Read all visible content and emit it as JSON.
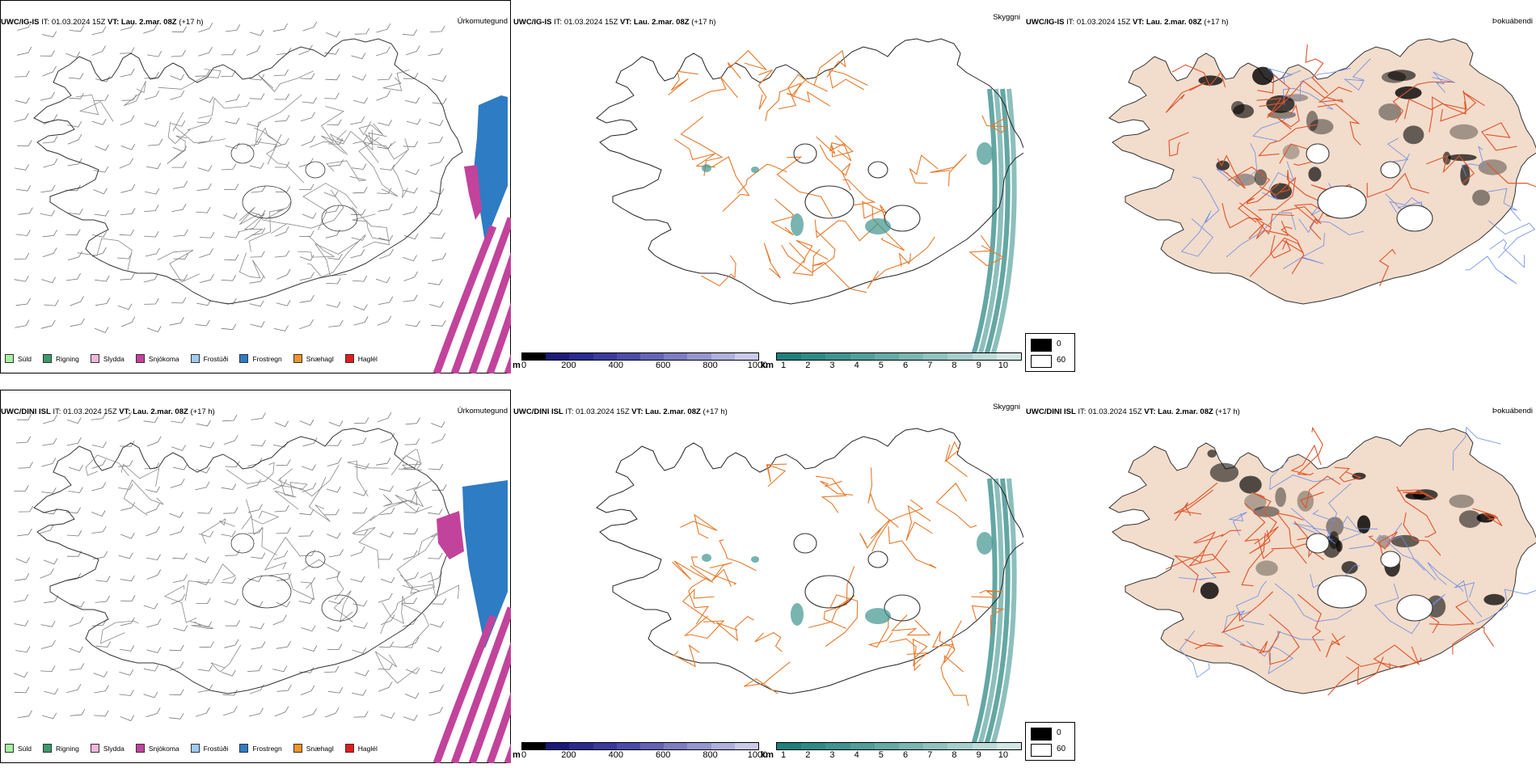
{
  "panels": [
    {
      "model": "UWC/IG-IS",
      "it_label": "IT:",
      "it_value": "01.03.2024 15Z",
      "vt_label": "VT:",
      "vt_value": "Lau. 2.mar. 08Z",
      "lead": "(+17 h)",
      "title": "Úrkomutegund"
    },
    {
      "model": "UWC/IG-IS",
      "it_label": "IT:",
      "it_value": "01.03.2024 15Z",
      "vt_label": "VT:",
      "vt_value": "Lau. 2.mar. 08Z",
      "lead": "(+17 h)",
      "title": "Skyggni"
    },
    {
      "model": "UWC/IG-IS",
      "it_label": "IT:",
      "it_value": "01.03.2024 15Z",
      "vt_label": "VT:",
      "vt_value": "Lau. 2.mar. 08Z",
      "lead": "(+17 h)",
      "title": "Þokuábendi"
    },
    {
      "model": "UWC/DINI ISL",
      "it_label": "IT:",
      "it_value": "01.03.2024 15Z",
      "vt_label": "VT:",
      "vt_value": "Lau. 2.mar. 08Z",
      "lead": "(+17 h)",
      "title": "Úrkomutegund"
    },
    {
      "model": "UWC/DINI ISL",
      "it_label": "IT:",
      "it_value": "01.03.2024 15Z",
      "vt_label": "VT:",
      "vt_value": "Lau. 2.mar. 08Z",
      "lead": "(+17 h)",
      "title": "Skyggni"
    },
    {
      "model": "UWC/DINI ISL",
      "it_label": "IT:",
      "it_value": "01.03.2024 15Z",
      "vt_label": "VT:",
      "vt_value": "Lau. 2.mar. 08Z",
      "lead": "(+17 h)",
      "title": "Þokuábendi"
    }
  ],
  "precip_legend": [
    {
      "label": "Súld",
      "color": "#a6f0a0"
    },
    {
      "label": "Rigning",
      "color": "#3d9a6b"
    },
    {
      "label": "Slydda",
      "color": "#f3b6dc"
    },
    {
      "label": "Snjókoma",
      "color": "#c2439b"
    },
    {
      "label": "Frostúði",
      "color": "#9ecbf0"
    },
    {
      "label": "Frostregn",
      "color": "#2e7cc4"
    },
    {
      "label": "Snæhagl",
      "color": "#f0952a"
    },
    {
      "label": "Haglél",
      "color": "#e21c1c"
    }
  ],
  "height_scale": {
    "unit": "m",
    "ticks": [
      "0",
      "200",
      "400",
      "600",
      "800",
      "1000"
    ],
    "colors": [
      "#000000",
      "#1a1a7a",
      "#2a2a90",
      "#3a3a9e",
      "#4b4baa",
      "#6464b6",
      "#7d7dc2",
      "#9696cf",
      "#b0b0dc",
      "#cacae8"
    ]
  },
  "visibility_scale": {
    "unit": "km",
    "ticks": [
      "1",
      "2",
      "3",
      "4",
      "5",
      "6",
      "7",
      "8",
      "9",
      "10"
    ],
    "colors": [
      "#1f7f7a",
      "#2f8a85",
      "#3f948f",
      "#529f9a",
      "#66aaa6",
      "#7bb6b2",
      "#91c2bf",
      "#a7cecb",
      "#bddad8",
      "#d3e7e5"
    ]
  },
  "fog_scale": {
    "low": "0",
    "high": "60",
    "low_color": "#000000",
    "high_color": "#ffffff"
  },
  "colors": {
    "land_fog": "#f2dccb",
    "roads": "#e8792a",
    "rivers": "#6a8ce6"
  }
}
